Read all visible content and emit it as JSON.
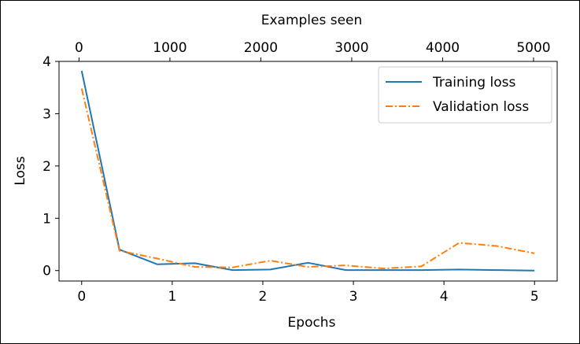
{
  "chart_data": {
    "type": "line",
    "xlabel": "Epochs",
    "ylabel": "Loss",
    "secondary_xlabel": "Examples seen",
    "xlim": [
      -0.25,
      5.25
    ],
    "ylim": [
      -0.2,
      4.0
    ],
    "x_ticks": [
      0,
      1,
      2,
      3,
      4,
      5
    ],
    "y_ticks": [
      0,
      1,
      2,
      3,
      4
    ],
    "secondary_x_ticks": [
      0,
      1000,
      2000,
      3000,
      4000,
      5000
    ],
    "secondary_xlim": [
      -220,
      5260
    ],
    "legend_position": "upper right",
    "grid": false,
    "series": [
      {
        "name": "Training loss",
        "color": "#1f77b4",
        "linestyle": "solid",
        "x": [
          0,
          0.417,
          0.833,
          1.25,
          1.667,
          2.083,
          2.5,
          2.917,
          3.333,
          3.75,
          4.167,
          4.583,
          5.0
        ],
        "y": [
          3.82,
          0.4,
          0.12,
          0.14,
          0.01,
          0.02,
          0.15,
          0.01,
          0.01,
          0.01,
          0.02,
          0.01,
          0.0
        ]
      },
      {
        "name": "Validation loss",
        "color": "#ff7f0e",
        "linestyle": "dashdot",
        "x": [
          0,
          0.417,
          0.833,
          1.25,
          1.667,
          2.083,
          2.5,
          2.917,
          3.333,
          3.75,
          4.167,
          4.583,
          5.0
        ],
        "y": [
          3.48,
          0.38,
          0.23,
          0.07,
          0.06,
          0.19,
          0.07,
          0.1,
          0.04,
          0.08,
          0.53,
          0.47,
          0.33
        ]
      }
    ]
  }
}
